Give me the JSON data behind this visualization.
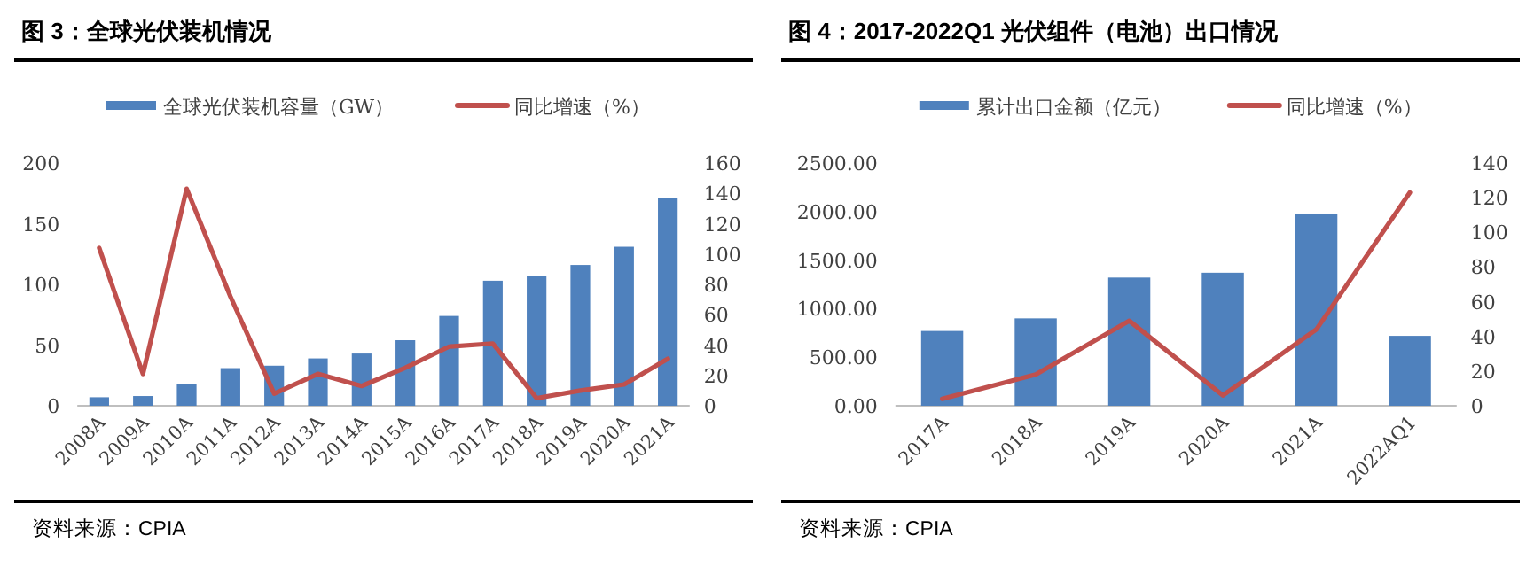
{
  "chart_data": [
    {
      "type": "bar",
      "title": "图 3：全球光伏装机情况",
      "categories": [
        "2008A",
        "2009A",
        "2010A",
        "2011A",
        "2012A",
        "2013A",
        "2014A",
        "2015A",
        "2016A",
        "2017A",
        "2018A",
        "2019A",
        "2020A",
        "2021A"
      ],
      "series": [
        {
          "name": "全球光伏装机容量（GW）",
          "color": "#4f81bd",
          "values": [
            7,
            8,
            18,
            31,
            33,
            39,
            43,
            54,
            74,
            103,
            107,
            116,
            131,
            171
          ]
        },
        {
          "name": "同比增速（%）",
          "type": "line",
          "axis": "y2",
          "color": "#c0504d",
          "values": [
            104,
            21,
            143,
            72,
            8,
            21,
            13,
            25,
            39,
            41,
            5,
            10,
            14,
            31
          ]
        }
      ],
      "ylim": [
        0,
        200
      ],
      "yticks": [
        0,
        50,
        100,
        150,
        200
      ],
      "y2lim": [
        0,
        160
      ],
      "y2ticks": [
        0,
        20,
        40,
        60,
        80,
        100,
        120,
        140,
        160
      ],
      "legend": "top",
      "grid": false,
      "annotations": [
        "资料来源：CPIA"
      ]
    },
    {
      "type": "bar",
      "title": "图 4：2017-2022Q1 光伏组件（电池）出口情况",
      "categories": [
        "2017A",
        "2018A",
        "2019A",
        "2020A",
        "2021A",
        "2022AQ1"
      ],
      "series": [
        {
          "name": "累计出口金额（亿元）",
          "color": "#4f81bd",
          "values": [
            770,
            900,
            1320,
            1370,
            1980,
            720
          ]
        },
        {
          "name": "同比增速（%）",
          "type": "line",
          "axis": "y2",
          "color": "#c0504d",
          "values": [
            4,
            18,
            49,
            6,
            44,
            123
          ]
        }
      ],
      "ylim": [
        0,
        2500
      ],
      "yticks": [
        {
          "value": 0,
          "label": "0.00"
        },
        {
          "value": 500,
          "label": "500.00"
        },
        {
          "value": 1000,
          "label": "1000.00"
        },
        {
          "value": 1500,
          "label": "1500.00"
        },
        {
          "value": 2000,
          "label": "2000.00"
        },
        {
          "value": 2500,
          "label": "2500.00"
        }
      ],
      "y2lim": [
        0,
        140
      ],
      "y2ticks": [
        0,
        20,
        40,
        60,
        80,
        100,
        120,
        140
      ],
      "legend": "top",
      "grid": false,
      "annotations": [
        "资料来源：CPIA"
      ]
    }
  ]
}
